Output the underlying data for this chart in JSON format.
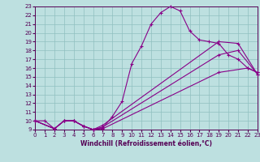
{
  "xlabel": "Windchill (Refroidissement éolien,°C)",
  "bg_color": "#bde0e0",
  "grid_color": "#90c0c0",
  "line_color": "#880088",
  "xlim": [
    0,
    23
  ],
  "ylim": [
    9,
    23
  ],
  "yticks": [
    9,
    10,
    11,
    12,
    13,
    14,
    15,
    16,
    17,
    18,
    19,
    20,
    21,
    22,
    23
  ],
  "xticks": [
    0,
    1,
    2,
    3,
    4,
    5,
    6,
    7,
    8,
    9,
    10,
    11,
    12,
    13,
    14,
    15,
    16,
    17,
    18,
    19,
    20,
    21,
    22,
    23
  ],
  "curve1_x": [
    0,
    1,
    2,
    3,
    4,
    5,
    6,
    7,
    8,
    9,
    10,
    11,
    12,
    13,
    14,
    15,
    16,
    17,
    18,
    19,
    20,
    21,
    22,
    23
  ],
  "curve1_y": [
    10.0,
    10.0,
    9.1,
    10.0,
    10.0,
    9.4,
    9.0,
    9.2,
    10.5,
    12.2,
    16.5,
    18.5,
    21.0,
    22.3,
    23.0,
    22.5,
    20.2,
    19.2,
    19.0,
    18.8,
    17.5,
    17.0,
    16.0,
    15.5
  ],
  "curve2_x": [
    0,
    2,
    3,
    4,
    5,
    6,
    7,
    19,
    21,
    23
  ],
  "curve2_y": [
    10.0,
    9.1,
    10.0,
    10.0,
    9.4,
    9.0,
    9.5,
    19.0,
    18.8,
    15.3
  ],
  "curve3_x": [
    0,
    2,
    3,
    4,
    5,
    6,
    7,
    19,
    21,
    23
  ],
  "curve3_y": [
    10.0,
    9.1,
    10.0,
    10.0,
    9.4,
    9.0,
    9.3,
    17.5,
    18.0,
    15.3
  ],
  "curve4_x": [
    0,
    2,
    3,
    4,
    5,
    6,
    7,
    19,
    22,
    23
  ],
  "curve4_y": [
    10.0,
    9.1,
    10.0,
    10.0,
    9.4,
    9.0,
    9.1,
    15.5,
    16.0,
    15.5
  ],
  "xlabel_fontsize": 5.5,
  "tick_fontsize": 5,
  "linewidth": 0.8,
  "marker_size": 3
}
